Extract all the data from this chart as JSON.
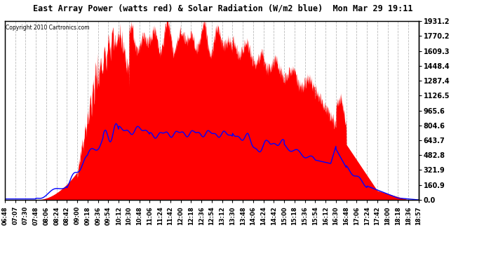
{
  "title": "East Array Power (watts red) & Solar Radiation (W/m2 blue)  Mon Mar 29 19:11",
  "copyright": "Copyright 2010 Cartronics.com",
  "yticks_right": [
    0.0,
    160.9,
    321.9,
    482.8,
    643.7,
    804.6,
    965.6,
    1126.5,
    1287.4,
    1448.4,
    1609.3,
    1770.2,
    1931.2
  ],
  "ymax": 1931.2,
  "bg_color": "#ffffff",
  "plot_bg": "#ffffff",
  "grid_color": "#bbbbbb",
  "red_color": "#ff0000",
  "blue_color": "#0000ff",
  "xtick_labels": [
    "06:48",
    "07:07",
    "07:30",
    "07:48",
    "08:06",
    "08:24",
    "08:42",
    "09:00",
    "09:18",
    "09:36",
    "09:54",
    "10:12",
    "10:30",
    "10:48",
    "11:06",
    "11:24",
    "11:42",
    "12:00",
    "12:18",
    "12:36",
    "12:54",
    "13:12",
    "13:30",
    "13:48",
    "14:06",
    "14:24",
    "14:42",
    "15:00",
    "15:18",
    "15:36",
    "15:54",
    "16:12",
    "16:30",
    "16:48",
    "17:06",
    "17:24",
    "17:42",
    "18:00",
    "18:18",
    "18:36",
    "18:57"
  ]
}
